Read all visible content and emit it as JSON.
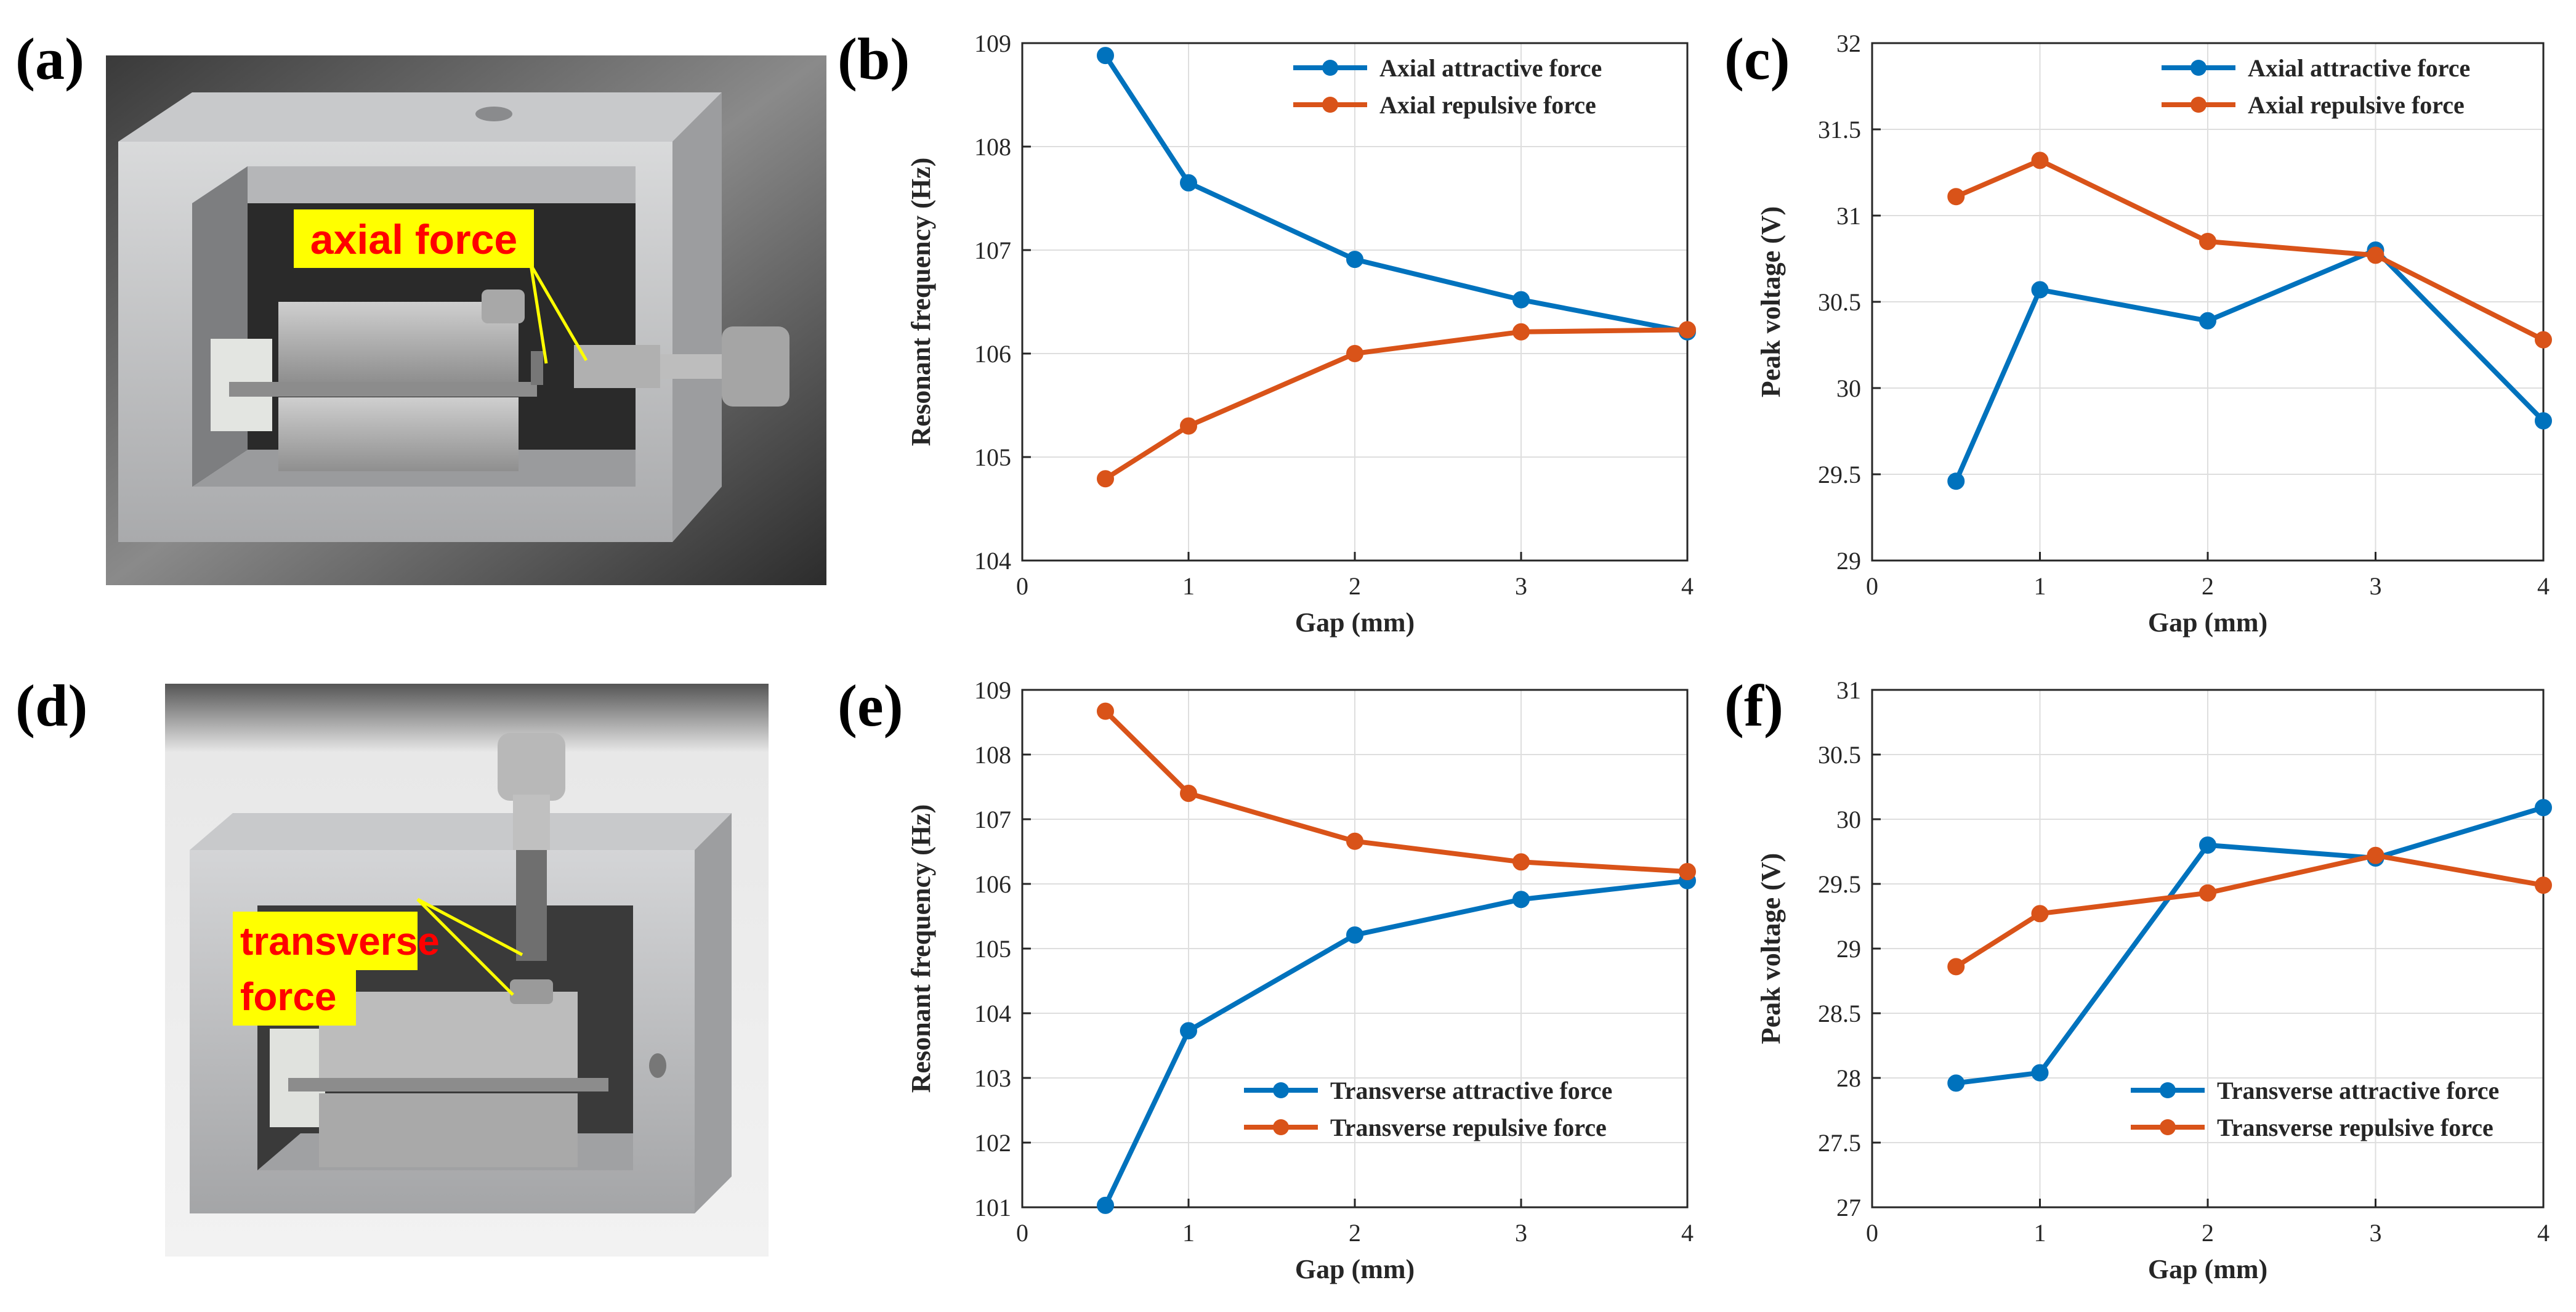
{
  "panels": {
    "a": "(a)",
    "b": "(b)",
    "c": "(c)",
    "d": "(d)",
    "e": "(e)",
    "f": "(f)"
  },
  "photos": {
    "a_annotation": "axial force",
    "d_annotation_line1": "transverse",
    "d_annotation_line2": "force"
  },
  "colors": {
    "blue": "#0072BD",
    "orange": "#D95319",
    "annotation_bg": "#FFFF00",
    "annotation_text": "#FF0000",
    "grid": "#DEDEDE"
  },
  "chart_data": [
    {
      "id": "b",
      "type": "line",
      "xlabel": "Gap (mm)",
      "ylabel": "Resonant frequency (Hz)",
      "xlim": [
        0,
        4
      ],
      "ylim": [
        104,
        109
      ],
      "xticks": [
        0,
        1,
        2,
        3,
        4
      ],
      "yticks": [
        104,
        105,
        106,
        107,
        108,
        109
      ],
      "legend_position": "top-right",
      "x": [
        0.5,
        1,
        2,
        3,
        4
      ],
      "series": [
        {
          "name": "Axial attractive force",
          "color": "#0072BD",
          "values": [
            108.88,
            107.65,
            106.91,
            106.52,
            106.21
          ]
        },
        {
          "name": "Axial repulsive force",
          "color": "#D95319",
          "values": [
            104.79,
            105.3,
            106.0,
            106.21,
            106.23
          ]
        }
      ]
    },
    {
      "id": "c",
      "type": "line",
      "xlabel": "Gap (mm)",
      "ylabel": "Peak voltage (V)",
      "xlim": [
        0,
        4
      ],
      "ylim": [
        29,
        32
      ],
      "xticks": [
        0,
        1,
        2,
        3,
        4
      ],
      "yticks": [
        29,
        29.5,
        30,
        30.5,
        31,
        31.5,
        32
      ],
      "legend_position": "top-right",
      "x": [
        0.5,
        1,
        2,
        3,
        4
      ],
      "series": [
        {
          "name": "Axial attractive force",
          "color": "#0072BD",
          "values": [
            29.46,
            30.57,
            30.39,
            30.8,
            29.81
          ]
        },
        {
          "name": "Axial repulsive force",
          "color": "#D95319",
          "values": [
            31.11,
            31.32,
            30.85,
            30.77,
            30.28
          ]
        }
      ]
    },
    {
      "id": "e",
      "type": "line",
      "xlabel": "Gap (mm)",
      "ylabel": "Resonant frequency (Hz)",
      "xlim": [
        0,
        4
      ],
      "ylim": [
        101,
        109
      ],
      "xticks": [
        0,
        1,
        2,
        3,
        4
      ],
      "yticks": [
        101,
        102,
        103,
        104,
        105,
        106,
        107,
        108,
        109
      ],
      "legend_position": "bottom-right",
      "x": [
        0.5,
        1,
        2,
        3,
        4
      ],
      "series": [
        {
          "name": "Transverse attractive force",
          "color": "#0072BD",
          "values": [
            101.03,
            103.73,
            105.21,
            105.76,
            106.05
          ]
        },
        {
          "name": "Transverse repulsive force",
          "color": "#D95319",
          "values": [
            108.67,
            107.4,
            106.66,
            106.34,
            106.19
          ]
        }
      ]
    },
    {
      "id": "f",
      "type": "line",
      "xlabel": "Gap (mm)",
      "ylabel": "Peak voltage (V)",
      "xlim": [
        0,
        4
      ],
      "ylim": [
        27,
        31
      ],
      "xticks": [
        0,
        1,
        2,
        3,
        4
      ],
      "yticks": [
        27,
        27.5,
        28,
        28.5,
        29,
        29.5,
        30,
        30.5,
        31
      ],
      "legend_position": "bottom-right",
      "x": [
        0.5,
        1,
        2,
        3,
        4
      ],
      "series": [
        {
          "name": "Transverse attractive force",
          "color": "#0072BD",
          "values": [
            27.96,
            28.04,
            29.8,
            29.7,
            30.09
          ]
        },
        {
          "name": "Transverse repulsive force",
          "color": "#D95319",
          "values": [
            28.86,
            29.27,
            29.43,
            29.72,
            29.49
          ]
        }
      ]
    }
  ]
}
